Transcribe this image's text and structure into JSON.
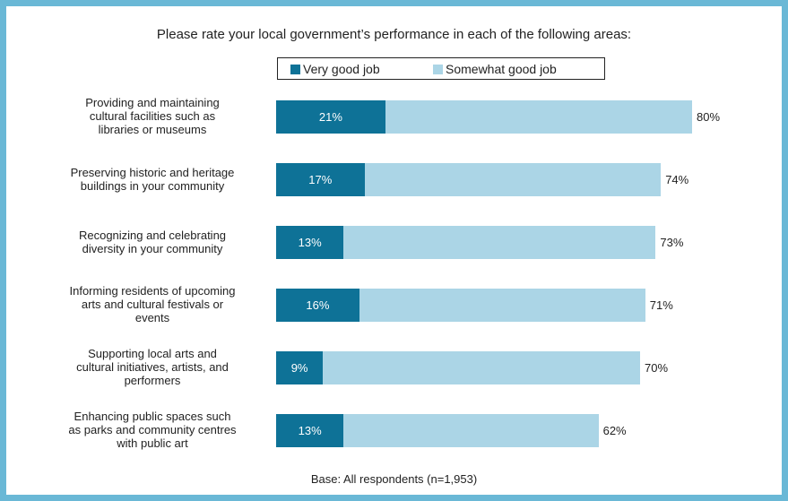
{
  "colors": {
    "frame": "#6ab8d6",
    "very_good": "#0e7297",
    "somewhat_good": "#abd5e6"
  },
  "chart_data": {
    "type": "bar",
    "orientation": "horizontal",
    "stacked": true,
    "title": "Please rate your local government’s performance in each of the following areas:",
    "categories": [
      "Providing and maintaining cultural facilities such as libraries or museums",
      "Preserving historic and heritage buildings in your community",
      "Recognizing and celebrating diversity in your community",
      "Informing residents of upcoming arts and cultural festivals or events",
      "Supporting local arts and cultural initiatives, artists, and performers",
      "Enhancing public spaces such as parks and community centres with public art"
    ],
    "category_lines": [
      [
        "Providing and maintaining",
        "cultural facilities such as",
        "libraries or museums"
      ],
      [
        "Preserving historic and heritage",
        "buildings in your community"
      ],
      [
        "Recognizing and celebrating",
        "diversity in your community"
      ],
      [
        "Informing residents of upcoming",
        "arts and cultural festivals or",
        "events"
      ],
      [
        "Supporting local arts and",
        "cultural initiatives, artists, and",
        "performers"
      ],
      [
        "Enhancing public spaces such",
        "as parks and community centres",
        "with public art"
      ]
    ],
    "series": [
      {
        "name": "Very good job",
        "values": [
          21,
          17,
          13,
          16,
          9,
          13
        ],
        "labels": [
          "21%",
          "17%",
          "13%",
          "16%",
          "9%",
          "13%"
        ]
      },
      {
        "name": "Somewhat good job",
        "values": [
          59,
          57,
          60,
          55,
          61,
          49
        ]
      }
    ],
    "totals": [
      80,
      74,
      73,
      71,
      70,
      62
    ],
    "total_labels": [
      "80%",
      "74%",
      "73%",
      "71%",
      "70%",
      "62%"
    ],
    "unit": "%",
    "xlim": [
      0,
      80
    ],
    "grid": false,
    "legend_position": "top"
  },
  "footer": "Base: All respondents (n=1,953)"
}
